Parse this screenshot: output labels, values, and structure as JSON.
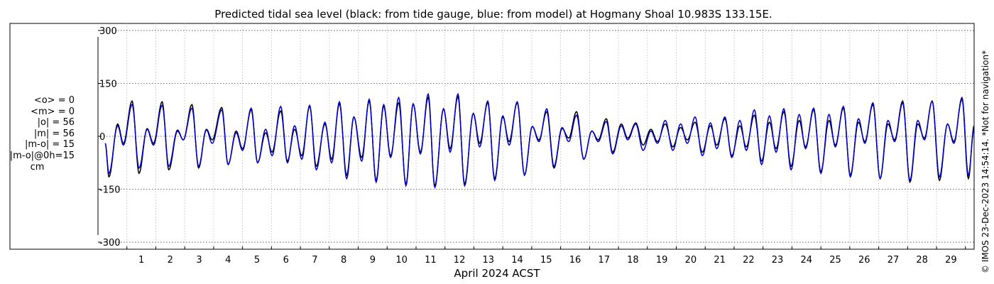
{
  "chart_data": {
    "type": "line",
    "title": "Predicted tidal sea level (black: from tide gauge, blue: from model) at Hogmany Shoal 10.983S 133.15E.",
    "xlabel": "April 2024 ACST",
    "ylabel": "",
    "xlim": [
      -0.5,
      29.8
    ],
    "ylim": [
      -320,
      320
    ],
    "x_ticks": [
      "1",
      "2",
      "3",
      "4",
      "5",
      "6",
      "7",
      "8",
      "9",
      "10",
      "11",
      "12",
      "13",
      "14",
      "15",
      "16",
      "17",
      "18",
      "19",
      "20",
      "21",
      "22",
      "23",
      "24",
      "25",
      "26",
      "27",
      "28",
      "29"
    ],
    "y_ticks": [
      300,
      150,
      0,
      -150,
      -300
    ],
    "y_tick_labels": [
      "300",
      "150",
      "0",
      "-150",
      "-300"
    ],
    "grid": true,
    "series": [
      {
        "color": "#000000",
        "high_low": [
          [
            -0.25,
            -20
          ],
          [
            -0.12,
            -115
          ],
          [
            0.18,
            35
          ],
          [
            0.38,
            -20
          ],
          [
            0.68,
            100
          ],
          [
            0.92,
            -105
          ],
          [
            1.2,
            22
          ],
          [
            1.42,
            -20
          ],
          [
            1.72,
            98
          ],
          [
            1.95,
            -95
          ],
          [
            2.25,
            15
          ],
          [
            2.45,
            -10
          ],
          [
            2.75,
            90
          ],
          [
            2.98,
            -90
          ],
          [
            3.25,
            20
          ],
          [
            3.45,
            -10
          ],
          [
            3.78,
            82
          ],
          [
            4.0,
            -80
          ],
          [
            4.28,
            15
          ],
          [
            4.5,
            -35
          ],
          [
            4.8,
            75
          ],
          [
            5.02,
            -75
          ],
          [
            5.3,
            10
          ],
          [
            5.52,
            -45
          ],
          [
            5.82,
            72
          ],
          [
            6.05,
            -70
          ],
          [
            6.3,
            20
          ],
          [
            6.55,
            -55
          ],
          [
            6.82,
            85
          ],
          [
            7.05,
            -85
          ],
          [
            7.35,
            35
          ],
          [
            7.58,
            -65
          ],
          [
            7.85,
            92
          ],
          [
            8.1,
            -110
          ],
          [
            8.35,
            55
          ],
          [
            8.62,
            -60
          ],
          [
            8.88,
            100
          ],
          [
            9.12,
            -125
          ],
          [
            9.38,
            85
          ],
          [
            9.62,
            -55
          ],
          [
            9.9,
            95
          ],
          [
            10.15,
            -135
          ],
          [
            10.4,
            92
          ],
          [
            10.65,
            -45
          ],
          [
            10.92,
            110
          ],
          [
            11.15,
            -140
          ],
          [
            11.45,
            78
          ],
          [
            11.68,
            -35
          ],
          [
            11.95,
            112
          ],
          [
            12.18,
            -135
          ],
          [
            12.48,
            65
          ],
          [
            12.7,
            -20
          ],
          [
            12.98,
            95
          ],
          [
            13.22,
            -120
          ],
          [
            13.5,
            55
          ],
          [
            13.72,
            -15
          ],
          [
            14.0,
            95
          ],
          [
            14.25,
            -110
          ],
          [
            14.52,
            28
          ],
          [
            14.75,
            -10
          ],
          [
            15.02,
            70
          ],
          [
            15.27,
            -90
          ],
          [
            15.55,
            22
          ],
          [
            15.78,
            -5
          ],
          [
            16.05,
            70
          ],
          [
            16.3,
            -65
          ],
          [
            16.58,
            15
          ],
          [
            16.8,
            -10
          ],
          [
            17.08,
            50
          ],
          [
            17.3,
            -45
          ],
          [
            17.6,
            35
          ],
          [
            17.82,
            -5
          ],
          [
            18.1,
            38
          ],
          [
            18.35,
            -25
          ],
          [
            18.62,
            20
          ],
          [
            18.85,
            -15
          ],
          [
            19.12,
            35
          ],
          [
            19.38,
            -30
          ],
          [
            19.65,
            25
          ],
          [
            19.88,
            -10
          ],
          [
            20.15,
            40
          ],
          [
            20.4,
            -45
          ],
          [
            20.68,
            30
          ],
          [
            20.9,
            -25
          ],
          [
            21.18,
            50
          ],
          [
            21.42,
            -55
          ],
          [
            21.7,
            30
          ],
          [
            21.92,
            -30
          ],
          [
            22.2,
            60
          ],
          [
            22.45,
            -70
          ],
          [
            22.72,
            40
          ],
          [
            22.95,
            -35
          ],
          [
            23.22,
            70
          ],
          [
            23.47,
            -85
          ],
          [
            23.75,
            45
          ],
          [
            23.97,
            -30
          ],
          [
            24.25,
            75
          ],
          [
            24.5,
            -100
          ],
          [
            24.78,
            45
          ],
          [
            25.0,
            -25
          ],
          [
            25.28,
            80
          ],
          [
            25.52,
            -110
          ],
          [
            25.8,
            40
          ],
          [
            26.02,
            -15
          ],
          [
            26.3,
            90
          ],
          [
            26.55,
            -120
          ],
          [
            26.82,
            35
          ],
          [
            27.05,
            -10
          ],
          [
            27.33,
            100
          ],
          [
            27.58,
            -130
          ],
          [
            27.85,
            35
          ],
          [
            28.08,
            -5
          ],
          [
            28.35,
            100
          ],
          [
            28.6,
            -125
          ],
          [
            28.88,
            35
          ],
          [
            29.1,
            -15
          ],
          [
            29.38,
            105
          ],
          [
            29.6,
            -120
          ],
          [
            29.8,
            30
          ]
        ]
      },
      {
        "color": "#0000cc",
        "high_low": [
          [
            -0.25,
            -20
          ],
          [
            -0.12,
            -105
          ],
          [
            0.18,
            30
          ],
          [
            0.38,
            -25
          ],
          [
            0.68,
            90
          ],
          [
            0.92,
            -90
          ],
          [
            1.2,
            20
          ],
          [
            1.42,
            -25
          ],
          [
            1.72,
            88
          ],
          [
            1.95,
            -85
          ],
          [
            2.25,
            18
          ],
          [
            2.45,
            -10
          ],
          [
            2.75,
            80
          ],
          [
            2.98,
            -85
          ],
          [
            3.25,
            18
          ],
          [
            3.45,
            -20
          ],
          [
            3.78,
            75
          ],
          [
            4.0,
            -80
          ],
          [
            4.28,
            10
          ],
          [
            4.5,
            -40
          ],
          [
            4.8,
            80
          ],
          [
            5.02,
            -75
          ],
          [
            5.3,
            20
          ],
          [
            5.52,
            -55
          ],
          [
            5.82,
            85
          ],
          [
            6.05,
            -75
          ],
          [
            6.3,
            30
          ],
          [
            6.55,
            -65
          ],
          [
            6.82,
            88
          ],
          [
            7.05,
            -95
          ],
          [
            7.35,
            40
          ],
          [
            7.58,
            -75
          ],
          [
            7.85,
            98
          ],
          [
            8.1,
            -120
          ],
          [
            8.35,
            55
          ],
          [
            8.62,
            -70
          ],
          [
            8.88,
            105
          ],
          [
            9.12,
            -130
          ],
          [
            9.38,
            90
          ],
          [
            9.62,
            -60
          ],
          [
            9.9,
            110
          ],
          [
            10.15,
            -140
          ],
          [
            10.4,
            92
          ],
          [
            10.65,
            -50
          ],
          [
            10.92,
            120
          ],
          [
            11.15,
            -145
          ],
          [
            11.45,
            78
          ],
          [
            11.68,
            -45
          ],
          [
            11.95,
            120
          ],
          [
            12.18,
            -140
          ],
          [
            12.48,
            65
          ],
          [
            12.7,
            -30
          ],
          [
            12.98,
            100
          ],
          [
            13.22,
            -125
          ],
          [
            13.5,
            58
          ],
          [
            13.72,
            -25
          ],
          [
            14.0,
            98
          ],
          [
            14.25,
            -110
          ],
          [
            14.52,
            28
          ],
          [
            14.75,
            -15
          ],
          [
            15.02,
            78
          ],
          [
            15.27,
            -85
          ],
          [
            15.55,
            25
          ],
          [
            15.78,
            -15
          ],
          [
            16.05,
            60
          ],
          [
            16.3,
            -65
          ],
          [
            16.58,
            15
          ],
          [
            16.8,
            -15
          ],
          [
            17.08,
            42
          ],
          [
            17.3,
            -50
          ],
          [
            17.6,
            30
          ],
          [
            17.82,
            -10
          ],
          [
            18.1,
            35
          ],
          [
            18.35,
            -40
          ],
          [
            18.62,
            15
          ],
          [
            18.85,
            -20
          ],
          [
            19.12,
            45
          ],
          [
            19.38,
            -40
          ],
          [
            19.65,
            35
          ],
          [
            19.88,
            -20
          ],
          [
            20.15,
            55
          ],
          [
            20.4,
            -55
          ],
          [
            20.68,
            38
          ],
          [
            20.9,
            -35
          ],
          [
            21.18,
            55
          ],
          [
            21.42,
            -60
          ],
          [
            21.7,
            45
          ],
          [
            21.92,
            -40
          ],
          [
            22.2,
            75
          ],
          [
            22.45,
            -80
          ],
          [
            22.72,
            58
          ],
          [
            22.95,
            -45
          ],
          [
            23.22,
            78
          ],
          [
            23.47,
            -95
          ],
          [
            23.75,
            62
          ],
          [
            23.97,
            -35
          ],
          [
            24.25,
            80
          ],
          [
            24.5,
            -105
          ],
          [
            24.78,
            62
          ],
          [
            25.0,
            -30
          ],
          [
            25.28,
            85
          ],
          [
            25.52,
            -115
          ],
          [
            25.8,
            50
          ],
          [
            26.02,
            -20
          ],
          [
            26.3,
            95
          ],
          [
            26.55,
            -120
          ],
          [
            26.82,
            45
          ],
          [
            27.05,
            -15
          ],
          [
            27.33,
            95
          ],
          [
            27.58,
            -125
          ],
          [
            27.85,
            45
          ],
          [
            28.08,
            -10
          ],
          [
            28.35,
            100
          ],
          [
            28.6,
            -115
          ],
          [
            28.88,
            35
          ],
          [
            29.1,
            -20
          ],
          [
            29.38,
            110
          ],
          [
            29.6,
            -110
          ],
          [
            29.8,
            20
          ]
        ]
      }
    ]
  },
  "stats": {
    "mean_obs": "<o> = 0",
    "mean_model": "<m> = 0",
    "abs_obs": "|o| = 56",
    "abs_model": "|m| = 56",
    "abs_diff": "|m-o| = 15",
    "abs_diff_0h": "|m-o|@0h=15",
    "unit": "cm"
  },
  "footer_note": "© IMOS 23-Dec-2023 14:54:14. *Not for navigation*"
}
